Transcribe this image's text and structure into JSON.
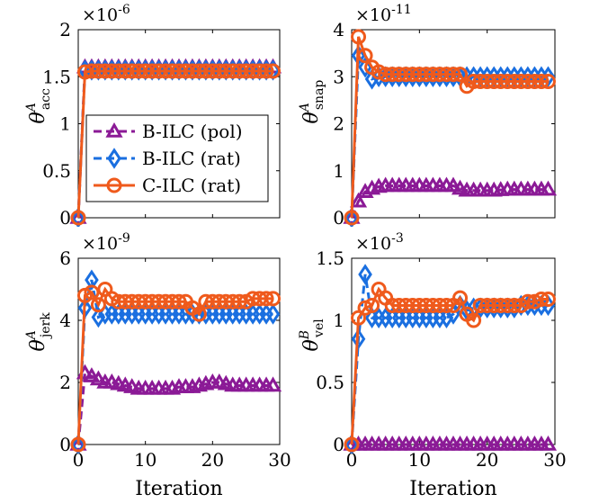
{
  "colors": {
    "pol": "#8b1a96",
    "rat_b": "#1a6fe0",
    "rat_c": "#ef5a1c"
  },
  "xlabel": "Iteration",
  "legend": [
    {
      "label": "B-ILC (pol)",
      "marker": "triangle",
      "color_key": "pol"
    },
    {
      "label": "B-ILC (rat)",
      "marker": "diamond",
      "color_key": "rat_b"
    },
    {
      "label": "C-ILC (rat)",
      "marker": "circle",
      "color_key": "rat_c"
    }
  ],
  "chart_data": [
    {
      "type": "line",
      "ylabel": {
        "base": "θ",
        "sup": "A",
        "sub": "acc"
      },
      "exponent": "×10^{-6}",
      "exponent_text": {
        "base": "×10",
        "sup": "-6"
      },
      "xlim": [
        0,
        30
      ],
      "ylim": [
        0,
        2
      ],
      "xticks": [
        0,
        10,
        20,
        30
      ],
      "yticks": [
        0,
        0.5,
        1,
        1.5,
        2
      ],
      "ytick_labels": [
        "0",
        "0.5",
        "1",
        "1.5",
        "2"
      ],
      "legend_placement": "center",
      "series": [
        {
          "name": "B-ILC (pol)",
          "marker": "triangle",
          "color_key": "pol",
          "x": [
            0,
            1,
            2,
            3,
            4,
            5,
            6,
            7,
            8,
            9,
            10,
            11,
            12,
            13,
            14,
            15,
            16,
            17,
            18,
            19,
            20,
            21,
            22,
            23,
            24,
            25,
            26,
            27,
            28,
            29
          ],
          "values": [
            0,
            1.6,
            1.6,
            1.6,
            1.6,
            1.6,
            1.6,
            1.6,
            1.6,
            1.6,
            1.6,
            1.6,
            1.6,
            1.6,
            1.6,
            1.6,
            1.6,
            1.6,
            1.6,
            1.6,
            1.6,
            1.6,
            1.6,
            1.6,
            1.6,
            1.6,
            1.6,
            1.6,
            1.6,
            1.6
          ]
        },
        {
          "name": "B-ILC (rat)",
          "marker": "diamond",
          "color_key": "rat_b",
          "x": [
            0,
            1,
            2,
            3,
            4,
            5,
            6,
            7,
            8,
            9,
            10,
            11,
            12,
            13,
            14,
            15,
            16,
            17,
            18,
            19,
            20,
            21,
            22,
            23,
            24,
            25,
            26,
            27,
            28,
            29
          ],
          "values": [
            0,
            1.57,
            1.57,
            1.57,
            1.57,
            1.57,
            1.57,
            1.57,
            1.57,
            1.57,
            1.57,
            1.57,
            1.57,
            1.57,
            1.57,
            1.57,
            1.57,
            1.57,
            1.57,
            1.57,
            1.57,
            1.57,
            1.57,
            1.57,
            1.57,
            1.57,
            1.57,
            1.57,
            1.57,
            1.57
          ]
        },
        {
          "name": "C-ILC (rat)",
          "marker": "circle",
          "color_key": "rat_c",
          "x": [
            0,
            1,
            2,
            3,
            4,
            5,
            6,
            7,
            8,
            9,
            10,
            11,
            12,
            13,
            14,
            15,
            16,
            17,
            18,
            19,
            20,
            21,
            22,
            23,
            24,
            25,
            26,
            27,
            28,
            29
          ],
          "values": [
            0,
            1.55,
            1.56,
            1.56,
            1.56,
            1.56,
            1.56,
            1.56,
            1.56,
            1.56,
            1.56,
            1.56,
            1.56,
            1.56,
            1.56,
            1.56,
            1.56,
            1.56,
            1.56,
            1.56,
            1.56,
            1.56,
            1.56,
            1.56,
            1.56,
            1.56,
            1.56,
            1.56,
            1.56,
            1.56
          ]
        }
      ]
    },
    {
      "type": "line",
      "ylabel": {
        "base": "θ",
        "sup": "A",
        "sub": "snap"
      },
      "exponent_text": {
        "base": "×10",
        "sup": "-11"
      },
      "xlim": [
        0,
        30
      ],
      "ylim": [
        0,
        4
      ],
      "xticks": [
        0,
        10,
        20,
        30
      ],
      "yticks": [
        0,
        1,
        2,
        3,
        4
      ],
      "ytick_labels": [
        "0",
        "1",
        "2",
        "3",
        "4"
      ],
      "series": [
        {
          "name": "B-ILC (pol)",
          "marker": "triangle",
          "color_key": "pol",
          "x": [
            0,
            1,
            2,
            3,
            4,
            5,
            6,
            7,
            8,
            9,
            10,
            11,
            12,
            13,
            14,
            15,
            16,
            17,
            18,
            19,
            20,
            21,
            22,
            23,
            24,
            25,
            26,
            27,
            28,
            29
          ],
          "values": [
            0,
            0.35,
            0.55,
            0.62,
            0.66,
            0.68,
            0.68,
            0.68,
            0.68,
            0.68,
            0.68,
            0.68,
            0.68,
            0.68,
            0.68,
            0.68,
            0.62,
            0.58,
            0.58,
            0.58,
            0.58,
            0.58,
            0.59,
            0.6,
            0.6,
            0.6,
            0.6,
            0.6,
            0.6,
            0.6
          ]
        },
        {
          "name": "B-ILC (rat)",
          "marker": "diamond",
          "color_key": "rat_b",
          "x": [
            0,
            1,
            2,
            3,
            4,
            5,
            6,
            7,
            8,
            9,
            10,
            11,
            12,
            13,
            14,
            15,
            16,
            17,
            18,
            19,
            20,
            21,
            22,
            23,
            24,
            25,
            26,
            27,
            28,
            29
          ],
          "values": [
            0,
            3.45,
            3.2,
            2.95,
            3.0,
            3.0,
            3.0,
            3.0,
            3.0,
            3.0,
            3.0,
            3.0,
            3.0,
            3.0,
            3.0,
            3.0,
            3.0,
            3.0,
            3.0,
            3.0,
            3.0,
            3.0,
            3.0,
            3.0,
            3.0,
            3.0,
            3.0,
            3.0,
            3.0,
            3.0
          ]
        },
        {
          "name": "C-ILC (rat)",
          "marker": "circle",
          "color_key": "rat_c",
          "x": [
            0,
            1,
            2,
            3,
            4,
            5,
            6,
            7,
            8,
            9,
            10,
            11,
            12,
            13,
            14,
            15,
            16,
            17,
            18,
            19,
            20,
            21,
            22,
            23,
            24,
            25,
            26,
            27,
            28,
            29
          ],
          "values": [
            0,
            3.85,
            3.45,
            3.2,
            3.1,
            3.05,
            3.05,
            3.05,
            3.05,
            3.05,
            3.05,
            3.05,
            3.05,
            3.05,
            3.05,
            3.05,
            3.05,
            2.8,
            2.9,
            2.9,
            2.9,
            2.9,
            2.9,
            2.9,
            2.9,
            2.9,
            2.9,
            2.9,
            2.9,
            2.9
          ]
        }
      ]
    },
    {
      "type": "line",
      "ylabel": {
        "base": "θ",
        "sup": "A",
        "sub": "jerk"
      },
      "exponent_text": {
        "base": "×10",
        "sup": "-9"
      },
      "xlim": [
        0,
        30
      ],
      "ylim": [
        0,
        6
      ],
      "xticks": [
        0,
        10,
        20,
        30
      ],
      "xtick_labels": [
        "0",
        "10",
        "20",
        "30"
      ],
      "yticks": [
        0,
        2,
        4,
        6
      ],
      "ytick_labels": [
        "0",
        "2",
        "4",
        "6"
      ],
      "series": [
        {
          "name": "B-ILC (pol)",
          "marker": "triangle",
          "color_key": "pol",
          "x": [
            0,
            1,
            2,
            3,
            4,
            5,
            6,
            7,
            8,
            9,
            10,
            11,
            12,
            13,
            14,
            15,
            16,
            17,
            18,
            19,
            20,
            21,
            22,
            23,
            24,
            25,
            26,
            27,
            28,
            29
          ],
          "values": [
            0,
            2.3,
            2.2,
            2.1,
            2.0,
            2.0,
            1.95,
            1.9,
            1.85,
            1.8,
            1.8,
            1.8,
            1.8,
            1.8,
            1.8,
            1.85,
            1.85,
            1.85,
            1.9,
            1.95,
            2.0,
            2.0,
            1.95,
            1.9,
            1.9,
            1.9,
            1.9,
            1.9,
            1.9,
            1.9
          ]
        },
        {
          "name": "B-ILC (rat)",
          "marker": "diamond",
          "color_key": "rat_b",
          "x": [
            0,
            1,
            2,
            3,
            4,
            5,
            6,
            7,
            8,
            9,
            10,
            11,
            12,
            13,
            14,
            15,
            16,
            17,
            18,
            19,
            20,
            21,
            22,
            23,
            24,
            25,
            26,
            27,
            28,
            29
          ],
          "values": [
            0,
            4.4,
            5.3,
            4.1,
            4.2,
            4.2,
            4.2,
            4.2,
            4.2,
            4.2,
            4.2,
            4.2,
            4.2,
            4.2,
            4.2,
            4.2,
            4.2,
            4.2,
            4.2,
            4.2,
            4.2,
            4.2,
            4.2,
            4.2,
            4.2,
            4.2,
            4.2,
            4.2,
            4.2,
            4.2
          ]
        },
        {
          "name": "C-ILC (rat)",
          "marker": "circle",
          "color_key": "rat_c",
          "x": [
            0,
            1,
            2,
            3,
            4,
            5,
            6,
            7,
            8,
            9,
            10,
            11,
            12,
            13,
            14,
            15,
            16,
            17,
            18,
            19,
            20,
            21,
            22,
            23,
            24,
            25,
            26,
            27,
            28,
            29
          ],
          "values": [
            0,
            4.8,
            4.9,
            4.5,
            5.0,
            4.7,
            4.6,
            4.6,
            4.6,
            4.6,
            4.6,
            4.6,
            4.6,
            4.6,
            4.6,
            4.6,
            4.6,
            4.4,
            4.2,
            4.6,
            4.6,
            4.6,
            4.6,
            4.6,
            4.6,
            4.6,
            4.7,
            4.7,
            4.7,
            4.7
          ]
        }
      ]
    },
    {
      "type": "line",
      "ylabel": {
        "base": "θ",
        "sup": "B",
        "sub": "vel"
      },
      "exponent_text": {
        "base": "×10",
        "sup": "-3"
      },
      "xlim": [
        0,
        30
      ],
      "ylim": [
        0,
        1.5
      ],
      "xticks": [
        0,
        10,
        20,
        30
      ],
      "xtick_labels": [
        "0",
        "10",
        "20",
        "30"
      ],
      "yticks": [
        0,
        0.5,
        1,
        1.5
      ],
      "ytick_labels": [
        "0",
        "0.5",
        "1",
        "1.5"
      ],
      "series": [
        {
          "name": "B-ILC (pol)",
          "marker": "triangle",
          "color_key": "pol",
          "x": [
            0,
            1,
            2,
            3,
            4,
            5,
            6,
            7,
            8,
            9,
            10,
            11,
            12,
            13,
            14,
            15,
            16,
            17,
            18,
            19,
            20,
            21,
            22,
            23,
            24,
            25,
            26,
            27,
            28,
            29
          ],
          "values": [
            0,
            0,
            0,
            0,
            0,
            0,
            0,
            0,
            0,
            0,
            0,
            0,
            0,
            0,
            0,
            0,
            0,
            0,
            0,
            0,
            0,
            0,
            0,
            0,
            0,
            0,
            0,
            0,
            0,
            0
          ]
        },
        {
          "name": "B-ILC (rat)",
          "marker": "diamond",
          "color_key": "rat_b",
          "x": [
            0,
            1,
            2,
            3,
            4,
            5,
            6,
            7,
            8,
            9,
            10,
            11,
            12,
            13,
            14,
            15,
            16,
            17,
            18,
            19,
            20,
            21,
            22,
            23,
            24,
            25,
            26,
            27,
            28,
            29
          ],
          "values": [
            0,
            0.85,
            1.37,
            1.02,
            1.02,
            1.02,
            1.02,
            1.02,
            1.02,
            1.02,
            1.02,
            1.02,
            1.02,
            1.02,
            1.02,
            1.05,
            1.12,
            1.08,
            1.1,
            1.1,
            1.1,
            1.1,
            1.1,
            1.1,
            1.1,
            1.12,
            1.12,
            1.12,
            1.12,
            1.12
          ]
        },
        {
          "name": "C-ILC (rat)",
          "marker": "circle",
          "color_key": "rat_c",
          "x": [
            0,
            1,
            2,
            3,
            4,
            5,
            6,
            7,
            8,
            9,
            10,
            11,
            12,
            13,
            14,
            15,
            16,
            17,
            18,
            19,
            20,
            21,
            22,
            23,
            24,
            25,
            26,
            27,
            28,
            29
          ],
          "values": [
            0,
            1.02,
            1.1,
            1.12,
            1.25,
            1.18,
            1.12,
            1.12,
            1.12,
            1.12,
            1.12,
            1.12,
            1.12,
            1.12,
            1.12,
            1.12,
            1.18,
            1.05,
            1.0,
            1.12,
            1.12,
            1.12,
            1.12,
            1.12,
            1.12,
            1.12,
            1.15,
            1.15,
            1.17,
            1.17
          ]
        }
      ]
    }
  ]
}
